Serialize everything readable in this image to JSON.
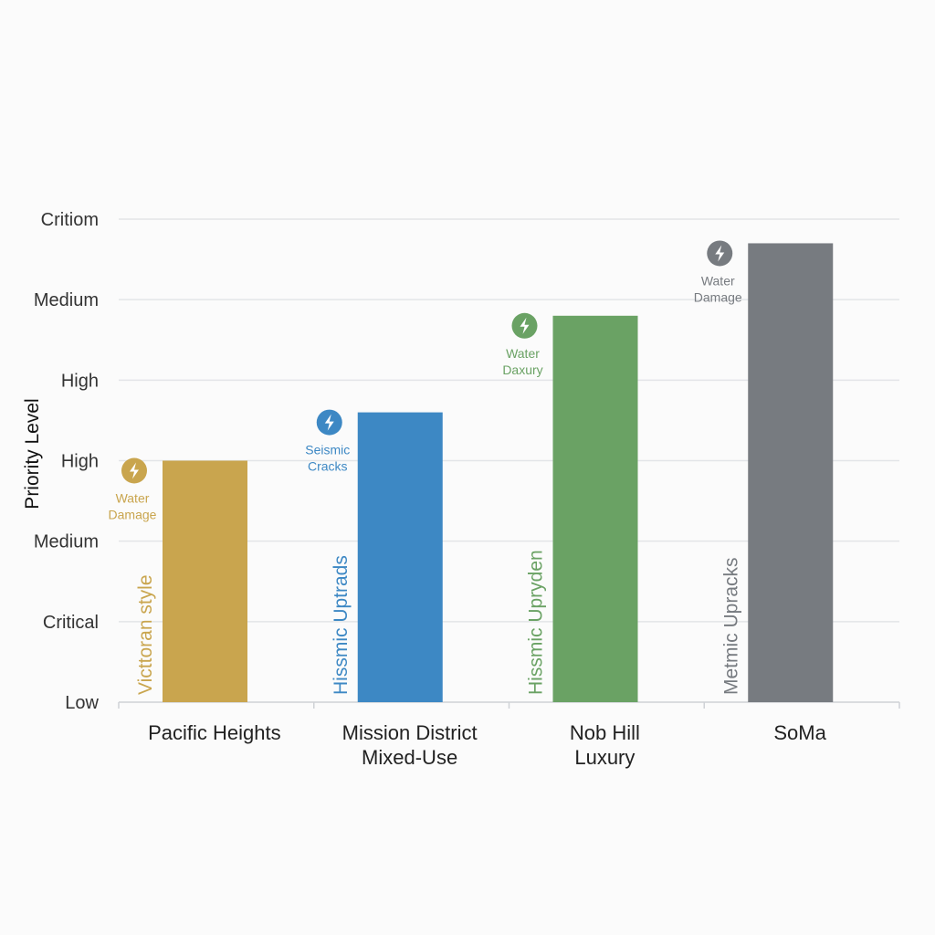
{
  "chart_data": {
    "type": "bar",
    "title": "",
    "xlabel": "",
    "ylabel": "Priority Level",
    "y_tick_labels": [
      "Low",
      "Critical",
      "Medium",
      "High",
      "High",
      "Medium",
      "Critiom"
    ],
    "ylim": [
      0,
      6
    ],
    "grid": true,
    "categories": [
      {
        "line1": "Pacific Heights",
        "line2": ""
      },
      {
        "line1": "Mission District",
        "line2": "Mixed-Use"
      },
      {
        "line1": "Nob Hill",
        "line2": "Luxury"
      },
      {
        "line1": "SoMa",
        "line2": ""
      }
    ],
    "values": [
      3.0,
      3.6,
      4.8,
      5.7
    ],
    "bar_colors": [
      "#c9a54e",
      "#3d88c4",
      "#6aa264",
      "#777b80"
    ],
    "bar_labels": [
      "Victtoran style",
      "Hissmic Uptrads",
      "Hissmic Upryden",
      "Metmic Upracks"
    ],
    "annotations": [
      {
        "icon": "lightning-icon",
        "line1": "Water",
        "line2": "Damage"
      },
      {
        "icon": "lightning-icon",
        "line1": "Seismic",
        "line2": "Cracks"
      },
      {
        "icon": "lightning-icon",
        "line1": "Water",
        "line2": "Daxury"
      },
      {
        "icon": "lightning-icon",
        "line1": "Water",
        "line2": "Damage"
      }
    ]
  }
}
